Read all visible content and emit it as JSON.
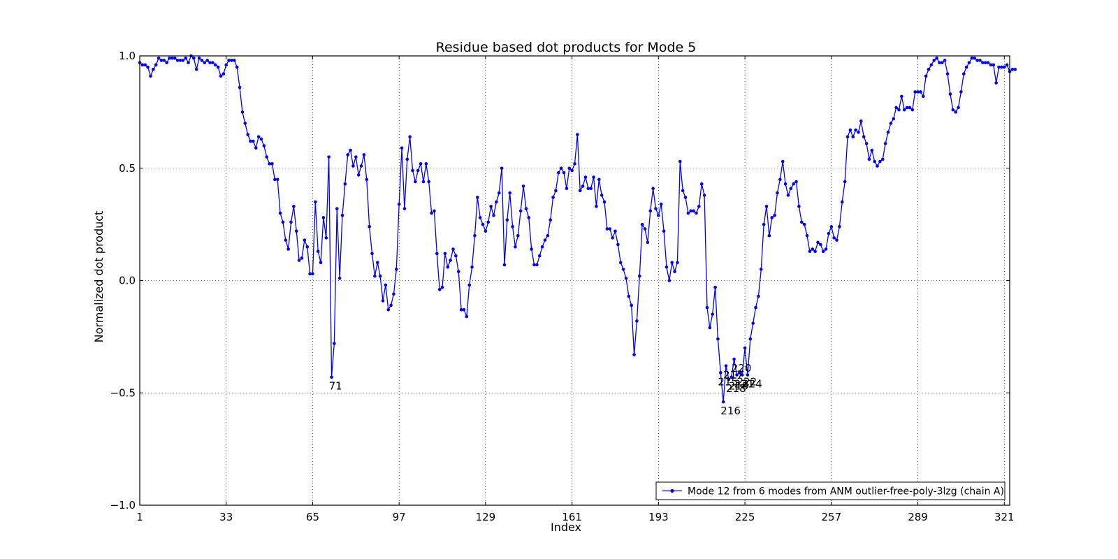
{
  "chart_data": {
    "type": "line",
    "title": "Residue based dot products for Mode 5",
    "xlabel": "Index",
    "ylabel": "Normalized dot product",
    "xlim": [
      1,
      323
    ],
    "ylim": [
      -1.0,
      1.0
    ],
    "grid": true,
    "legend_position": "lower-right",
    "x_ticks": [
      1,
      33,
      65,
      97,
      129,
      161,
      193,
      225,
      257,
      289,
      321
    ],
    "y_ticks": [
      -1.0,
      -0.5,
      0.0,
      0.5,
      1.0
    ],
    "x_tick_labels": [
      "1",
      "33",
      "65",
      "97",
      "129",
      "161",
      "193",
      "225",
      "257",
      "289",
      "321"
    ],
    "y_tick_labels": [
      "−1.0",
      "−0.5",
      "0.0",
      "0.5",
      "1.0"
    ],
    "series": [
      {
        "name": "Mode 12 from 6 modes from ANM outlier-free-poly-3lzg (chain A)",
        "color": "#0000ff",
        "x_start": 1,
        "values": [
          0.97,
          0.96,
          0.96,
          0.95,
          0.91,
          0.94,
          0.96,
          0.99,
          0.98,
          0.98,
          0.97,
          0.99,
          0.99,
          0.99,
          0.98,
          0.98,
          0.98,
          0.99,
          0.97,
          1.0,
          0.99,
          0.94,
          0.99,
          0.98,
          0.97,
          0.98,
          0.97,
          0.97,
          0.96,
          0.95,
          0.91,
          0.92,
          0.96,
          0.98,
          0.98,
          0.98,
          0.95,
          0.86,
          0.75,
          0.7,
          0.65,
          0.62,
          0.62,
          0.59,
          0.64,
          0.63,
          0.6,
          0.55,
          0.52,
          0.52,
          0.45,
          0.45,
          0.3,
          0.26,
          0.18,
          0.14,
          0.26,
          0.33,
          0.22,
          0.09,
          0.1,
          0.18,
          0.15,
          0.03,
          0.03,
          0.35,
          0.13,
          0.08,
          0.28,
          0.19,
          0.55,
          -0.43,
          -0.28,
          0.32,
          0.01,
          0.29,
          0.43,
          0.56,
          0.58,
          0.51,
          0.55,
          0.47,
          0.51,
          0.56,
          0.45,
          0.24,
          0.12,
          0.02,
          0.08,
          0.02,
          -0.09,
          -0.02,
          -0.13,
          -0.11,
          -0.06,
          0.05,
          0.34,
          0.59,
          0.32,
          0.54,
          0.64,
          0.49,
          0.44,
          0.49,
          0.52,
          0.44,
          0.52,
          0.44,
          0.3,
          0.31,
          0.12,
          -0.04,
          -0.03,
          0.12,
          0.06,
          0.09,
          0.14,
          0.11,
          0.04,
          -0.13,
          -0.13,
          -0.16,
          -0.02,
          0.06,
          0.2,
          0.37,
          0.28,
          0.25,
          0.22,
          0.26,
          0.33,
          0.29,
          0.35,
          0.39,
          0.5,
          0.07,
          0.27,
          0.39,
          0.24,
          0.15,
          0.2,
          0.31,
          0.42,
          0.32,
          0.28,
          0.14,
          0.07,
          0.07,
          0.11,
          0.15,
          0.18,
          0.2,
          0.27,
          0.37,
          0.4,
          0.48,
          0.5,
          0.48,
          0.41,
          0.5,
          0.49,
          0.52,
          0.65,
          0.4,
          0.42,
          0.46,
          0.41,
          0.41,
          0.46,
          0.33,
          0.45,
          0.38,
          0.35,
          0.23,
          0.23,
          0.19,
          0.22,
          0.16,
          0.08,
          0.05,
          0.01,
          -0.07,
          -0.11,
          -0.33,
          -0.18,
          0.02,
          0.25,
          0.23,
          0.17,
          0.31,
          0.41,
          0.32,
          0.29,
          0.34,
          0.22,
          0.06,
          0.0,
          0.08,
          0.04,
          0.08,
          0.53,
          0.4,
          0.37,
          0.3,
          0.31,
          0.31,
          0.3,
          0.33,
          0.43,
          0.38,
          -0.12,
          -0.21,
          -0.15,
          -0.03,
          -0.26,
          -0.41,
          -0.54,
          -0.38,
          -0.44,
          -0.43,
          -0.35,
          -0.42,
          -0.41,
          -0.42,
          -0.3,
          -0.42,
          -0.26,
          -0.19,
          -0.12,
          -0.07,
          0.05,
          0.25,
          0.33,
          0.2,
          0.28,
          0.29,
          0.39,
          0.45,
          0.53,
          0.43,
          0.38,
          0.41,
          0.43,
          0.44,
          0.33,
          0.26,
          0.25,
          0.2,
          0.13,
          0.14,
          0.13,
          0.17,
          0.16,
          0.13,
          0.14,
          0.21,
          0.24,
          0.19,
          0.18,
          0.24,
          0.35,
          0.44,
          0.64,
          0.67,
          0.64,
          0.67,
          0.66,
          0.71,
          0.64,
          0.61,
          0.54,
          0.58,
          0.53,
          0.51,
          0.53,
          0.54,
          0.61,
          0.66,
          0.7,
          0.72,
          0.77,
          0.76,
          0.82,
          0.76,
          0.77,
          0.77,
          0.76,
          0.84,
          0.84,
          0.84,
          0.82,
          0.91,
          0.94,
          0.96,
          0.98,
          0.99,
          0.97,
          0.97,
          0.98,
          0.92,
          0.83,
          0.76,
          0.75,
          0.77,
          0.84,
          0.92,
          0.95,
          0.97,
          0.99,
          0.99,
          0.98,
          0.98,
          0.97,
          0.97,
          0.97,
          0.96,
          0.96,
          0.88,
          0.95,
          0.95,
          0.95,
          0.96,
          0.93,
          0.94,
          0.94
        ]
      }
    ],
    "annotations": [
      {
        "text": "71",
        "x": 71,
        "y": -0.43
      },
      {
        "text": "215",
        "x": 215,
        "y": -0.41
      },
      {
        "text": "216",
        "x": 216,
        "y": -0.54
      },
      {
        "text": "217",
        "x": 217,
        "y": -0.38
      },
      {
        "text": "218",
        "x": 218,
        "y": -0.44
      },
      {
        "text": "219",
        "x": 219,
        "y": -0.43
      },
      {
        "text": "220",
        "x": 220,
        "y": -0.35
      },
      {
        "text": "221",
        "x": 221,
        "y": -0.42
      },
      {
        "text": "222",
        "x": 222,
        "y": -0.41
      },
      {
        "text": "224",
        "x": 224,
        "y": -0.42
      }
    ]
  }
}
